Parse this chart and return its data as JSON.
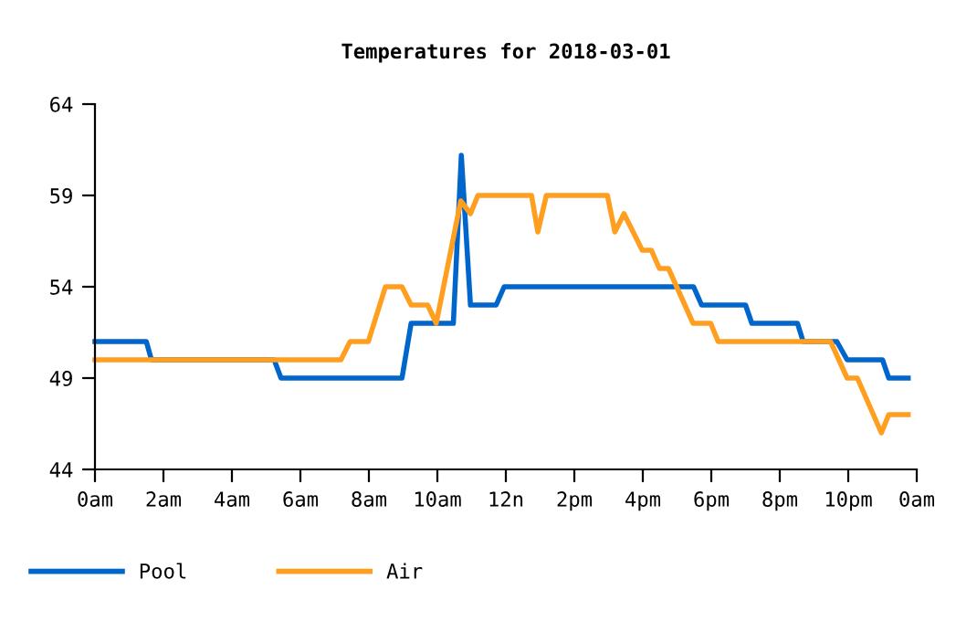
{
  "chart_data": {
    "type": "line",
    "title": "Temperatures for 2018-03-01",
    "xlim": [
      "2018-03-01T00:00",
      "2018-03-02T00:00"
    ],
    "xticks": [
      {
        "value": "2018-03-01T00:00",
        "label": "0am"
      },
      {
        "value": "2018-03-01T02:00",
        "label": "2am"
      },
      {
        "value": "2018-03-01T04:00",
        "label": "4am"
      },
      {
        "value": "2018-03-01T06:00",
        "label": "6am"
      },
      {
        "value": "2018-03-01T08:00",
        "label": "8am"
      },
      {
        "value": "2018-03-01T10:00",
        "label": "10am"
      },
      {
        "value": "2018-03-01T12:00",
        "label": "12n"
      },
      {
        "value": "2018-03-01T14:00",
        "label": "2pm"
      },
      {
        "value": "2018-03-01T16:00",
        "label": "4pm"
      },
      {
        "value": "2018-03-01T18:00",
        "label": "6pm"
      },
      {
        "value": "2018-03-01T20:00",
        "label": "8pm"
      },
      {
        "value": "2018-03-01T22:00",
        "label": "10pm"
      },
      {
        "value": "2018-03-02T00:00",
        "label": "0am"
      }
    ],
    "ylim": [
      44,
      64
    ],
    "yticks": [
      44,
      49,
      54,
      59,
      64
    ],
    "grid": false,
    "legend": "bottom",
    "marker": "none",
    "line_style": "solid",
    "series": [
      {
        "name": "Pool",
        "color": "#0066cc",
        "x": [
          "2018-03-01T00:00",
          "2018-03-01T01:30",
          "2018-03-01T01:39",
          "2018-03-01T05:14",
          "2018-03-01T05:26",
          "2018-03-01T08:58",
          "2018-03-01T09:14",
          "2018-03-01T10:28",
          "2018-03-01T10:42",
          "2018-03-01T10:58",
          "2018-03-01T11:43",
          "2018-03-01T11:57",
          "2018-03-01T17:29",
          "2018-03-01T17:43",
          "2018-03-01T19:00",
          "2018-03-01T19:11",
          "2018-03-01T20:31",
          "2018-03-01T20:41",
          "2018-03-01T21:40",
          "2018-03-01T21:58",
          "2018-03-01T23:00",
          "2018-03-01T23:11",
          "2018-03-01T23:45"
        ],
        "values": [
          51,
          51,
          50,
          50,
          49,
          49,
          52,
          52,
          61.2,
          53,
          53,
          54,
          54,
          53,
          53,
          52,
          52,
          51,
          51,
          50,
          50,
          49,
          49
        ]
      },
      {
        "name": "Air",
        "color": "#ff9e1f",
        "x": [
          "2018-03-01T00:00",
          "2018-03-01T07:11",
          "2018-03-01T07:27",
          "2018-03-01T07:59",
          "2018-03-01T08:29",
          "2018-03-01T08:58",
          "2018-03-01T09:14",
          "2018-03-01T09:43",
          "2018-03-01T09:58",
          "2018-03-01T10:41",
          "2018-03-01T10:58",
          "2018-03-01T11:11",
          "2018-03-01T12:45",
          "2018-03-01T12:56",
          "2018-03-01T13:11",
          "2018-03-01T14:58",
          "2018-03-01T15:11",
          "2018-03-01T15:27",
          "2018-03-01T15:59",
          "2018-03-01T16:15",
          "2018-03-01T16:29",
          "2018-03-01T16:45",
          "2018-03-01T17:28",
          "2018-03-01T17:59",
          "2018-03-01T18:12",
          "2018-03-01T21:29",
          "2018-03-01T21:58",
          "2018-03-01T22:16",
          "2018-03-01T22:58",
          "2018-03-01T23:11",
          "2018-03-01T23:45"
        ],
        "values": [
          50,
          50,
          51,
          51,
          54,
          54,
          53,
          53,
          52,
          58.7,
          58,
          59,
          59,
          57,
          59,
          59,
          57,
          58,
          56,
          56,
          55,
          55,
          52,
          52,
          51,
          51,
          49,
          49,
          46,
          47,
          47
        ]
      }
    ]
  }
}
